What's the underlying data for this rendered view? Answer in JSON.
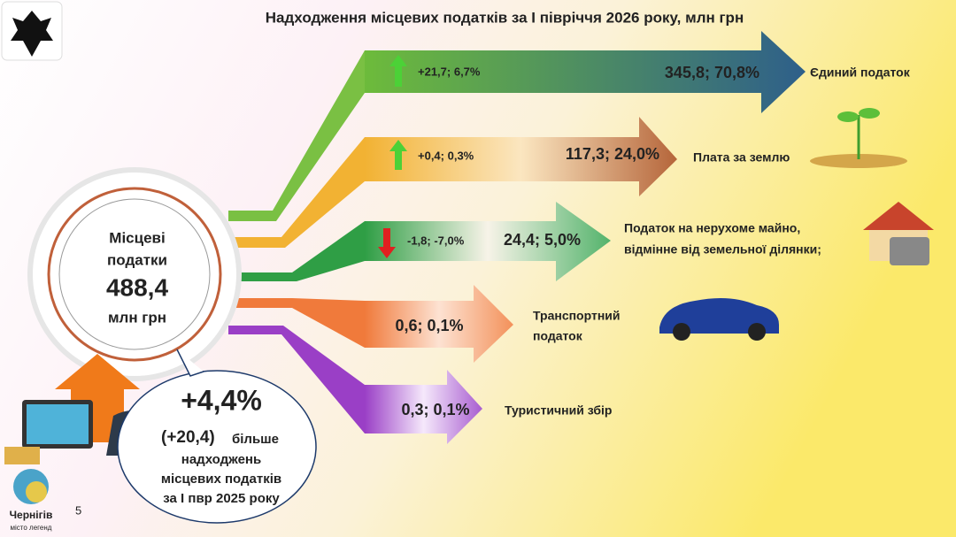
{
  "title": "Надходження місцевих податків за І півріччя 2026 року, млн грн",
  "center": {
    "lines": [
      "Місцеві",
      "податки"
    ],
    "total": "488,4",
    "unit": "млн грн"
  },
  "taxes": [
    {
      "change": "+21,7; 6,7%",
      "value": "345,8; 70,8%",
      "name": [
        "Єдиний податок"
      ]
    },
    {
      "change": "+0,4; 0,3%",
      "value": "117,3; 24,0%",
      "name": [
        "Плата за землю"
      ]
    },
    {
      "change": "-1,8; -7,0%",
      "value": "24,4; 5,0%",
      "name": [
        "Податок на нерухоме майно,",
        "відмінне від земельної ділянки;"
      ]
    },
    {
      "value": "0,6; 0,1%",
      "name": [
        "Транспортний",
        "податок"
      ]
    },
    {
      "value": "0,3; 0,1%",
      "name": [
        "Туристичний збір"
      ]
    }
  ],
  "callout": {
    "percent": "+4,4%",
    "amount": "(+20,4)",
    "lines": [
      "більше",
      "надходжень",
      "місцевих податків",
      "за І пвр 2025 року"
    ]
  },
  "page_number": "5",
  "logo": {
    "name": "Чернігів",
    "tagline": "місто легенд"
  }
}
